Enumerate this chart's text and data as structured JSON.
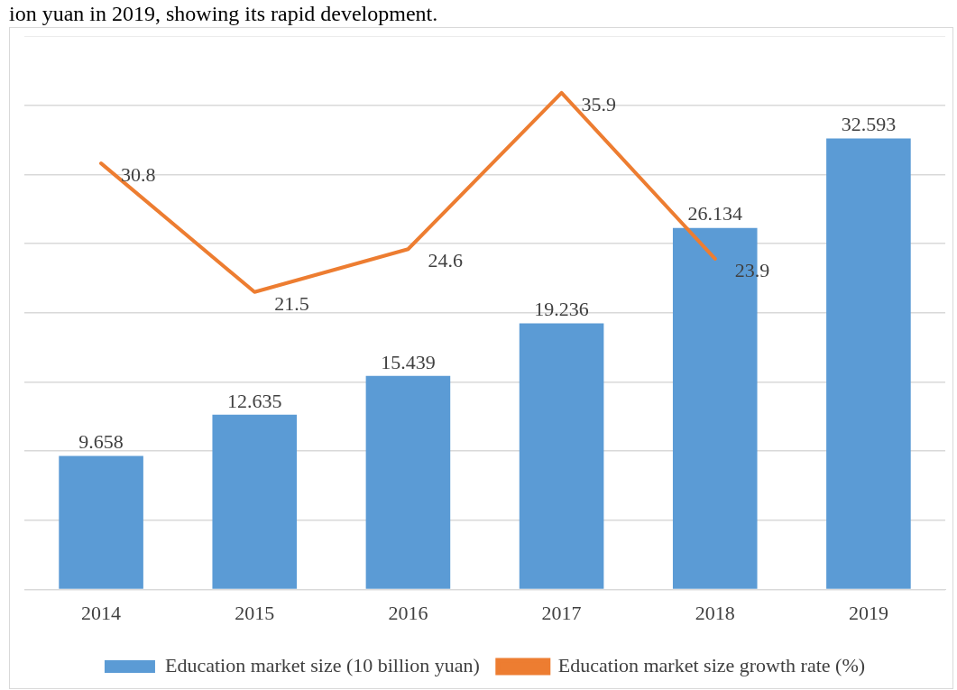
{
  "chart_data": {
    "type": "bar",
    "annotations": [
      "ion yuan in 2019, showing its rapid development."
    ],
    "categories": [
      "2014",
      "2015",
      "2016",
      "2017",
      "2018",
      "2019"
    ],
    "series": [
      {
        "name": "Education market size (10 billion yuan)",
        "color": "#5b9bd5",
        "values": [
          9.658,
          12.635,
          15.439,
          19.236,
          26.134,
          32.593
        ]
      },
      {
        "name": "Education market size growth rate (%)",
        "type": "line",
        "color": "#ed7d31",
        "values": [
          30.8,
          21.5,
          24.6,
          35.9,
          23.9,
          null
        ]
      }
    ],
    "ylim": [
      0,
      40
    ],
    "yticks": [
      {
        "value": 0,
        "label": null
      },
      {
        "value": 5,
        "label": null
      },
      {
        "value": 10,
        "label": null
      },
      {
        "value": 15,
        "label": null
      },
      {
        "value": 20,
        "label": null
      },
      {
        "value": 25,
        "label": null
      },
      {
        "value": 30,
        "label": null
      },
      {
        "value": 35,
        "label": null
      },
      {
        "value": 40,
        "label": null
      }
    ],
    "tick_labels": "x",
    "grid": "y",
    "legend": "bottom",
    "data_labels": true,
    "marker": "none"
  }
}
